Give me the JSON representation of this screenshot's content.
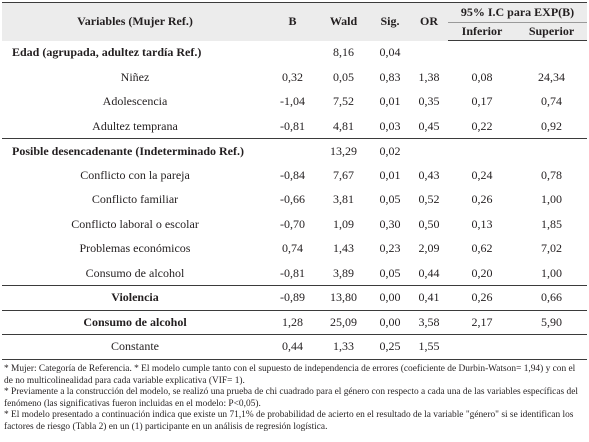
{
  "table": {
    "headers": {
      "variable": "Variables (Mujer Ref.)",
      "b": "B",
      "wald": "Wald",
      "sig": "Sig.",
      "or": "OR",
      "ci": "95% I.C para EXP(B)",
      "lower": "Inferior",
      "upper": "Superior"
    },
    "rows": [
      {
        "label": "Edad (agrupada, adultez tardía Ref.)",
        "b": "",
        "wald": "8,16",
        "sig": "0,04",
        "or": "",
        "lower": "",
        "upper": ""
      },
      {
        "label": "Niñez",
        "b": "0,32",
        "wald": "0,05",
        "sig": "0,83",
        "or": "1,38",
        "lower": "0,08",
        "upper": "24,34"
      },
      {
        "label": "Adolescencia",
        "b": "-1,04",
        "wald": "7,52",
        "sig": "0,01",
        "or": "0,35",
        "lower": "0,17",
        "upper": "0,74"
      },
      {
        "label": "Adultez temprana",
        "b": "-0,81",
        "wald": "4,81",
        "sig": "0,03",
        "or": "0,45",
        "lower": "0,22",
        "upper": "0,92"
      },
      {
        "label": "Posible desencadenante (Indeterminado Ref.)",
        "b": "",
        "wald": "13,29",
        "sig": "0,02",
        "or": "",
        "lower": "",
        "upper": ""
      },
      {
        "label": "Conflicto con la pareja",
        "b": "-0,84",
        "wald": "7,67",
        "sig": "0,01",
        "or": "0,43",
        "lower": "0,24",
        "upper": "0,78"
      },
      {
        "label": "Conflicto familiar",
        "b": "-0,66",
        "wald": "3,81",
        "sig": "0,05",
        "or": "0,52",
        "lower": "0,26",
        "upper": "1,00"
      },
      {
        "label": "Conflicto laboral o escolar",
        "b": "-0,70",
        "wald": "1,09",
        "sig": "0,30",
        "or": "0,50",
        "lower": "0,13",
        "upper": "1,85"
      },
      {
        "label": "Problemas económicos",
        "b": "0,74",
        "wald": "1,43",
        "sig": "0,23",
        "or": "2,09",
        "lower": "0,62",
        "upper": "7,02"
      },
      {
        "label": "Consumo de alcohol",
        "b": "-0,81",
        "wald": "3,89",
        "sig": "0,05",
        "or": "0,44",
        "lower": "0,20",
        "upper": "1,00"
      },
      {
        "label": "Violencia",
        "b": "-0,89",
        "wald": "13,80",
        "sig": "0,00",
        "or": "0,41",
        "lower": "0,26",
        "upper": "0,66"
      },
      {
        "label": "Consumo de alcohol",
        "b": "1,28",
        "wald": "25,09",
        "sig": "0,00",
        "or": "3,58",
        "lower": "2,17",
        "upper": "5,90"
      },
      {
        "label": "Constante",
        "b": "0,44",
        "wald": "1,33",
        "sig": "0,25",
        "or": "1,55",
        "lower": "",
        "upper": ""
      }
    ]
  },
  "notes": [
    "* Mujer: Categoría de Referencia. * El modelo cumple tanto con el supuesto de independencia de errores (coeficiente de Durbin-Watson= 1,94) y con el de no multicolinealidad para cada variable explicativa (VIF= 1).",
    "* Previamente a la construcción del modelo, se realizó una prueba de chi cuadrado para el género con respecto a cada una de las variables específicas del fenómeno (las significativas fueron incluidas en el modelo: P<0,05).",
    "* El modelo presentado a continuación indica que existe un 71,1% de probabilidad de acierto en el resultado de la variable \"género\" si se identifican los factores de riesgo (Tabla 2) en un (1) participante en un análisis de regresión logística."
  ]
}
